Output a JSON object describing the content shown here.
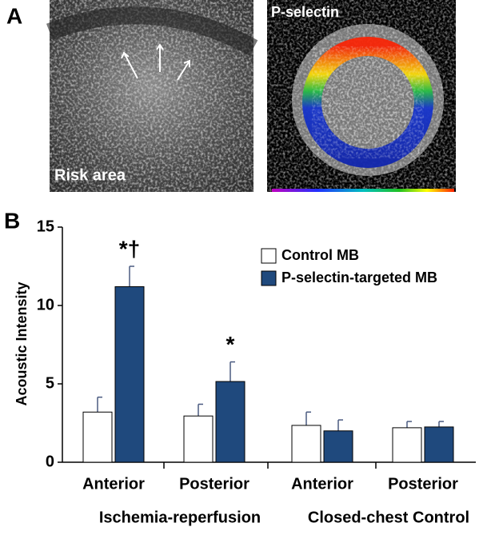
{
  "chart_data": {
    "type": "bar",
    "panel_a": {
      "label": "A",
      "left_caption": "Risk area",
      "right_caption": "P-selectin"
    },
    "panel_label": "B",
    "y_label": "Acoustic Intensity",
    "categories": [
      "Anterior",
      "Posterior",
      "Anterior",
      "Posterior"
    ],
    "groups": [
      {
        "label": "Ischemia-reperfusion",
        "categories": [
          0,
          1
        ]
      },
      {
        "label": "Closed-chest Control",
        "categories": [
          2,
          3
        ]
      }
    ],
    "series": [
      {
        "name": "Control MB",
        "color": "#ffffff",
        "values": [
          3.2,
          2.95,
          2.35,
          2.2
        ],
        "errors": [
          0.95,
          0.75,
          0.85,
          0.4
        ]
      },
      {
        "name": "P-selectin-targeted MB",
        "color": "#1f497d",
        "values": [
          11.2,
          5.15,
          2.0,
          2.25
        ],
        "errors": [
          1.3,
          1.25,
          0.7,
          0.35
        ]
      }
    ],
    "annotations": [
      {
        "text": "*†",
        "series": 1,
        "category": 0
      },
      {
        "text": "*",
        "series": 1,
        "category": 1
      }
    ],
    "ylim": [
      0,
      15
    ],
    "yticks": [
      0,
      5,
      10,
      15
    ],
    "legend": "upper-right"
  }
}
